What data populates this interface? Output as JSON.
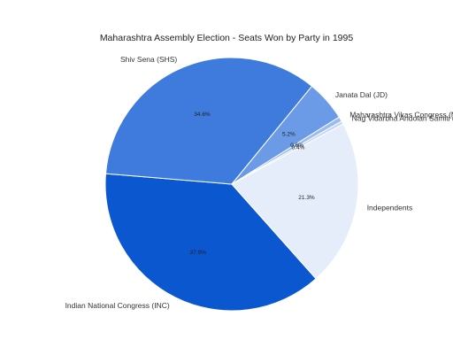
{
  "chart_data": {
    "type": "pie",
    "title": "Maharashtra Assembly Election - Seats Won by Party in 1995",
    "start_angle_deg": 138.3,
    "direction": "clockwise",
    "slices": [
      {
        "name": "Indian National Congress (INC)",
        "value": 37.9,
        "label": "37.9%",
        "color": "#0b57d0"
      },
      {
        "name": "Shiv Sena (SHS)",
        "value": 34.6,
        "label": "34.6%",
        "color": "#3e7bdc"
      },
      {
        "name": "Janata Dal (JD)",
        "value": 5.2,
        "label": "5.2%",
        "color": "#6b9be6"
      },
      {
        "name": "Maharashtra Vikas Congress (MVC)",
        "value": 0.6,
        "label": "0.6%",
        "color": "#9bbcef"
      },
      {
        "name": "Nag Vidarbha Andolan Samiti (NVAS)",
        "value": 0.4,
        "label": "0.4%",
        "color": "#c5d6f5"
      },
      {
        "name": "Independents",
        "value": 21.3,
        "label": "21.3%",
        "color": "#e6edfa"
      }
    ]
  }
}
